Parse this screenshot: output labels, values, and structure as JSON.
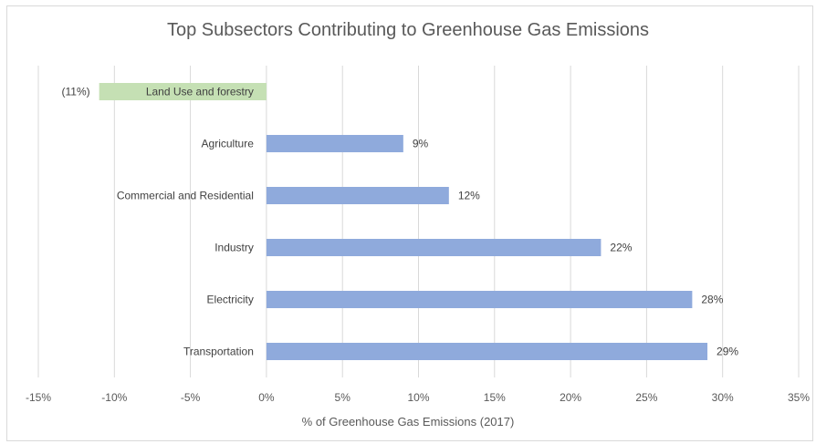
{
  "chart_data": {
    "type": "bar",
    "orientation": "horizontal",
    "title": "Top Subsectors Contributing to Greenhouse Gas Emissions",
    "xlabel": "% of Greenhouse Gas Emissions (2017)",
    "ylabel": "",
    "xlim": [
      -15,
      35
    ],
    "x_ticks": [
      "-15%",
      "-10%",
      "-5%",
      "0%",
      "5%",
      "10%",
      "15%",
      "20%",
      "25%",
      "30%",
      "35%"
    ],
    "x_tick_values": [
      -15,
      -10,
      -5,
      0,
      5,
      10,
      15,
      20,
      25,
      30,
      35
    ],
    "grid": "vertical",
    "categories": [
      "Land Use and forestry",
      "Agriculture",
      "Commercial and Residential",
      "Industry",
      "Electricity",
      "Transportation"
    ],
    "values": [
      -11,
      9,
      12,
      22,
      28,
      29
    ],
    "data_labels": [
      "(11%)",
      "9%",
      "12%",
      "22%",
      "28%",
      "29%"
    ],
    "colors": {
      "positive": "#8faadc",
      "negative": "#c5e0b4",
      "grid": "#d9d9d9"
    }
  }
}
